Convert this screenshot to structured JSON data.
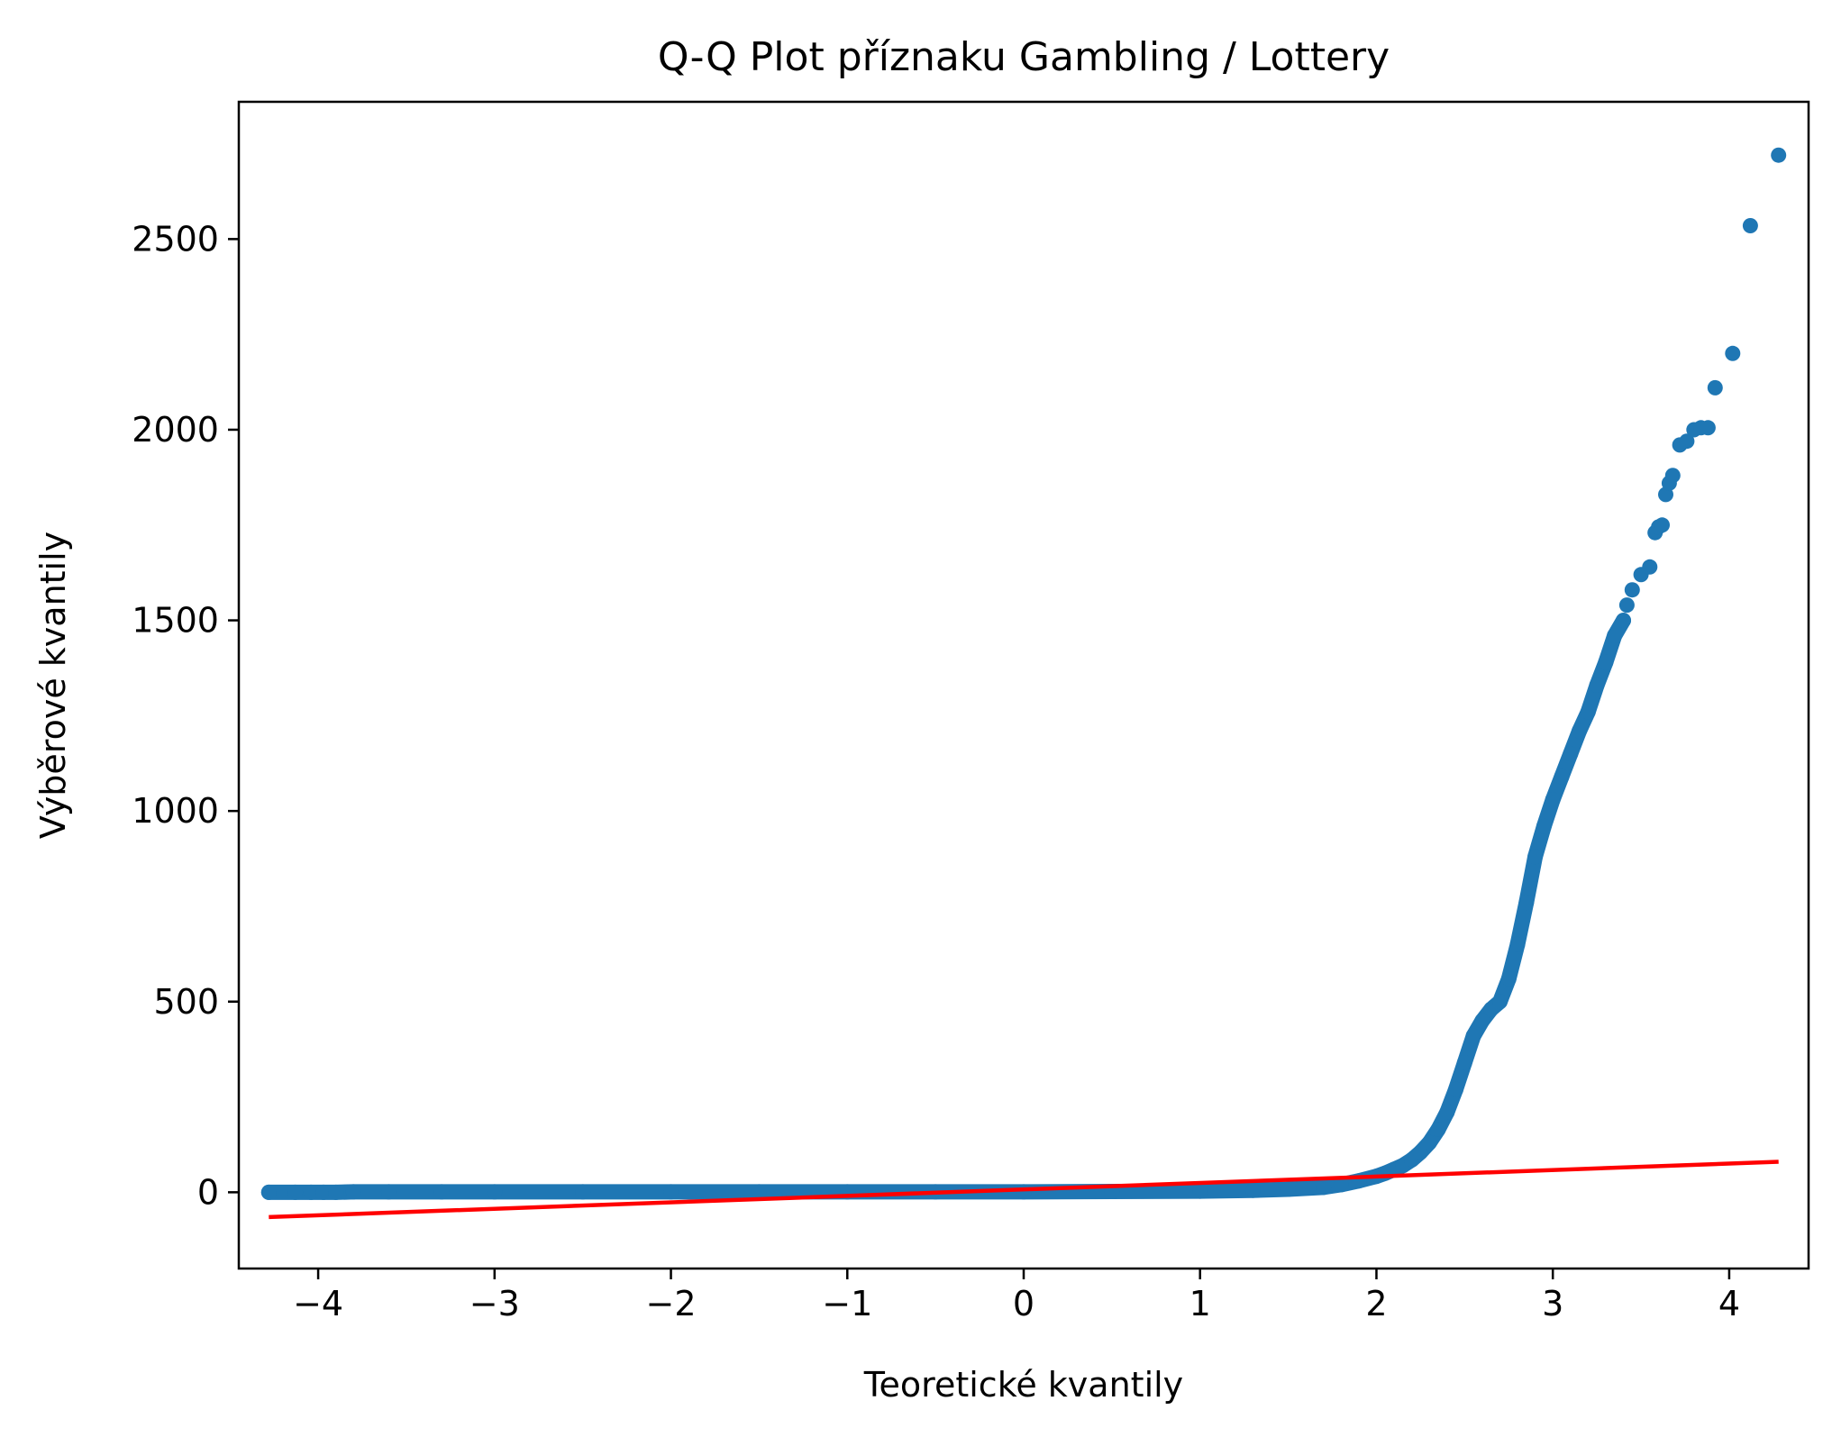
{
  "chart_data": {
    "type": "scatter",
    "title": "Q-Q Plot příznaku Gambling / Lottery",
    "xlabel": "Teoretické kvantily",
    "ylabel": "Výběrové kvantily",
    "xlim": [
      -4.45,
      4.45
    ],
    "ylim": [
      -200,
      2860
    ],
    "x_ticks": [
      -4,
      -3,
      -2,
      -1,
      0,
      1,
      2,
      3,
      4
    ],
    "x_tick_labels": [
      "−4",
      "−3",
      "−2",
      "−1",
      "0",
      "1",
      "2",
      "3",
      "4"
    ],
    "y_ticks": [
      0,
      500,
      1000,
      1500,
      2000,
      2500
    ],
    "y_tick_labels": [
      "0",
      "500",
      "1000",
      "1500",
      "2000",
      "2500"
    ],
    "grid": false,
    "colors": {
      "points": "#1f77b4",
      "fit_line": "#ff0000",
      "axes": "#000000"
    },
    "series": [
      {
        "kind": "points",
        "x": [
          -4.28,
          -4.13,
          -4.04,
          -3.97,
          -3.9,
          -3.8,
          -3.6,
          -3.3,
          -3.0,
          -2.5,
          -2.0,
          -1.5,
          -1.0,
          -0.5,
          0.0,
          0.5,
          1.0,
          1.3,
          1.5,
          1.7,
          1.8,
          1.9,
          2.0,
          2.05,
          2.1,
          2.15,
          2.2,
          2.25,
          2.3,
          2.35,
          2.4,
          2.45,
          2.5,
          2.55,
          2.6,
          2.65,
          2.7,
          2.75,
          2.8,
          2.85,
          2.9,
          2.95,
          3.0,
          3.05,
          3.1,
          3.15,
          3.2,
          3.25,
          3.3,
          3.35,
          3.4,
          3.42,
          3.45,
          3.5,
          3.55,
          3.58,
          3.6,
          3.62,
          3.64,
          3.66,
          3.68,
          3.72,
          3.76,
          3.8,
          3.84,
          3.88,
          3.92,
          4.02,
          4.12,
          4.28
        ],
        "y": [
          0,
          0,
          0,
          0,
          0,
          1,
          1,
          1,
          1,
          1,
          1,
          1,
          1,
          1,
          1,
          2,
          3,
          5,
          8,
          13,
          20,
          30,
          42,
          50,
          60,
          70,
          85,
          105,
          130,
          165,
          210,
          270,
          340,
          410,
          450,
          480,
          500,
          560,
          650,
          760,
          880,
          960,
          1030,
          1090,
          1150,
          1210,
          1260,
          1330,
          1390,
          1460,
          1500,
          1540,
          1580,
          1620,
          1640,
          1730,
          1745,
          1750,
          1830,
          1860,
          1880,
          1960,
          1970,
          2000,
          2005,
          2005,
          2110,
          2200,
          2535,
          2720
        ]
      },
      {
        "kind": "fit_line",
        "x": [
          -4.28,
          4.28
        ],
        "y": [
          -65,
          80
        ]
      }
    ]
  }
}
